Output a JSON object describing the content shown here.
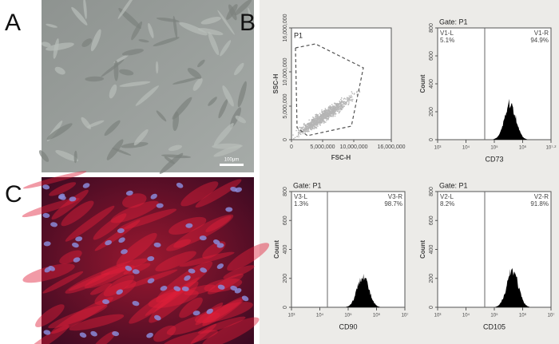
{
  "panels": {
    "a": {
      "label": "A",
      "scale_bar": "100μm"
    },
    "b": {
      "label": "B"
    },
    "c": {
      "label": "C"
    }
  },
  "scatter": {
    "gate": "P1",
    "x_label": "FSC-H",
    "y_label": "SSC-H",
    "xticks": [
      "0",
      "5,000,000",
      "10,000,000",
      "16,000,000"
    ],
    "yticks": [
      "0",
      "5,000,000",
      "10,000,000",
      "16,000,000"
    ]
  },
  "histograms": [
    {
      "gate": "Gate: P1",
      "left_name": "V1-L",
      "left_pct": "5.1%",
      "right_name": "V1-R",
      "right_pct": "94.9%",
      "y_label": "Count",
      "x_label": "CD73",
      "yticks": [
        "0",
        "200",
        "400",
        "600",
        "800"
      ],
      "xticks": [
        "10³",
        "10⁴",
        "10⁵",
        "10⁶",
        "10⁷·²"
      ]
    },
    {
      "gate": "Gate: P1",
      "left_name": "V3-L",
      "left_pct": "1.3%",
      "right_name": "V3-R",
      "right_pct": "98.7%",
      "y_label": "Count",
      "x_label": "CD90",
      "yticks": [
        "0",
        "200",
        "400",
        "600",
        "800"
      ],
      "xticks": [
        "10³",
        "10⁴",
        "10⁵",
        "10⁶",
        "10⁷"
      ]
    },
    {
      "gate": "Gate: P1",
      "left_name": "V2-L",
      "left_pct": "8.2%",
      "right_name": "V2-R",
      "right_pct": "91.8%",
      "y_label": "Count",
      "x_label": "CD105",
      "yticks": [
        "0",
        "200",
        "400",
        "600",
        "800"
      ],
      "xticks": [
        "10³",
        "10⁴",
        "10⁵",
        "10⁶",
        "10⁷"
      ]
    }
  ]
}
